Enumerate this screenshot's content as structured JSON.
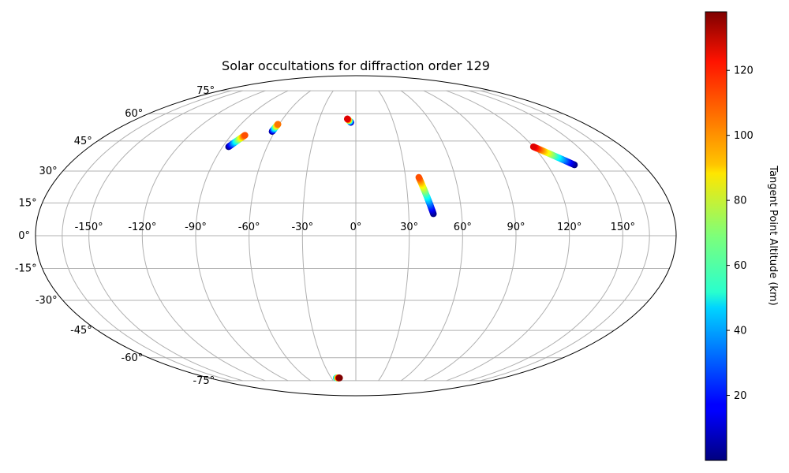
{
  "chart_data": {
    "type": "scatter",
    "projection": "mollweide",
    "title": "Solar occultations for diffraction order 129",
    "x_tick_labels": [
      "-150°",
      "-120°",
      "-90°",
      "-60°",
      "-30°",
      "0°",
      "30°",
      "60°",
      "90°",
      "120°",
      "150°"
    ],
    "x_ticks": [
      -150,
      -120,
      -90,
      -60,
      -30,
      0,
      30,
      60,
      90,
      120,
      150
    ],
    "y_tick_labels": [
      "-75°",
      "-60°",
      "-45°",
      "-30°",
      "-15°",
      "0°",
      "15°",
      "30°",
      "45°",
      "60°",
      "75°"
    ],
    "y_ticks": [
      -75,
      -60,
      -45,
      -30,
      -15,
      0,
      15,
      30,
      45,
      60,
      75
    ],
    "grid": true,
    "colormap": "jet",
    "colorbar": {
      "label": "Tangent Point Altitude (km)",
      "range": [
        0,
        138
      ],
      "ticks": [
        20,
        40,
        60,
        80,
        100,
        120
      ],
      "tick_labels": [
        "20",
        "40",
        "60",
        "80",
        "100",
        "120"
      ],
      "location": "right"
    },
    "series": [
      {
        "lon_start": -86,
        "lat_start": 42,
        "alt_start": 0,
        "lon_end": -80,
        "lat_end": 48,
        "alt_end": 110
      },
      {
        "lon_start": -62,
        "lat_start": 50,
        "alt_start": 0,
        "lon_end": -61,
        "lat_end": 54,
        "alt_end": 105
      },
      {
        "lon_start": -4,
        "lat_start": 55,
        "alt_start": 0,
        "lon_end": -7,
        "lat_end": 57,
        "alt_end": 125
      },
      {
        "lon_start": 44,
        "lat_start": 10,
        "alt_start": 0,
        "lon_end": 38,
        "lat_end": 27,
        "alt_end": 110
      },
      {
        "lon_start": 137,
        "lat_start": 33,
        "alt_start": 0,
        "lon_end": 120,
        "lat_end": 42,
        "alt_end": 125
      },
      {
        "lon_start": -24,
        "lat_start": -73,
        "alt_start": 40,
        "lon_end": -20,
        "lat_end": -73,
        "alt_end": 138
      }
    ]
  }
}
